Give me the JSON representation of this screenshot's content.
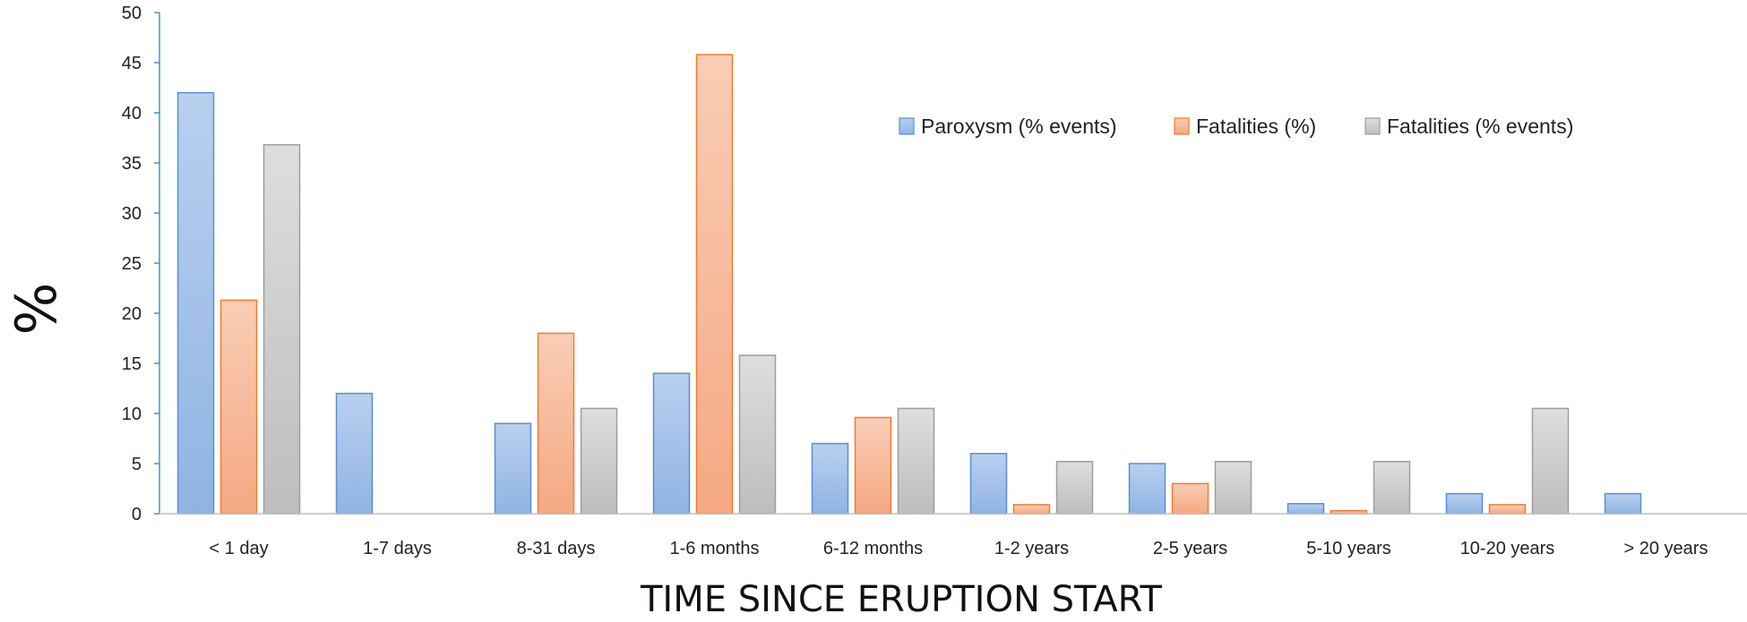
{
  "chart_data": {
    "type": "bar",
    "title": "",
    "xlabel": "TIME SINCE ERUPTION START",
    "ylabel": "%",
    "ylim": [
      0,
      50
    ],
    "yticks": [
      0,
      5,
      10,
      15,
      20,
      25,
      30,
      35,
      40,
      45,
      50
    ],
    "grid": false,
    "legend_position": "top-right",
    "categories": [
      "< 1 day",
      "1-7 days",
      "8-31 days",
      "1-6 months",
      "6-12 months",
      "1-2 years",
      "2-5 years",
      "5-10 years",
      "10-20 years",
      "> 20 years"
    ],
    "series": [
      {
        "name": "Paroxysm (% events)",
        "color": "#8fb4e3",
        "stroke": "#5b8fd0",
        "values": [
          42,
          12,
          9,
          14,
          7,
          6,
          5,
          1,
          2,
          2
        ]
      },
      {
        "name": "Fatalities (%)",
        "color": "#f5b08f",
        "stroke": "#ed7d31",
        "values": [
          21.3,
          0,
          18,
          45.8,
          9.6,
          0.9,
          3,
          0.3,
          0.9,
          0
        ]
      },
      {
        "name": "Fatalities (% events)",
        "color": "#c9c9c9",
        "stroke": "#9e9e9e",
        "values": [
          36.8,
          0,
          10.5,
          15.8,
          10.5,
          5.2,
          5.2,
          5.2,
          10.5,
          0
        ]
      }
    ]
  }
}
